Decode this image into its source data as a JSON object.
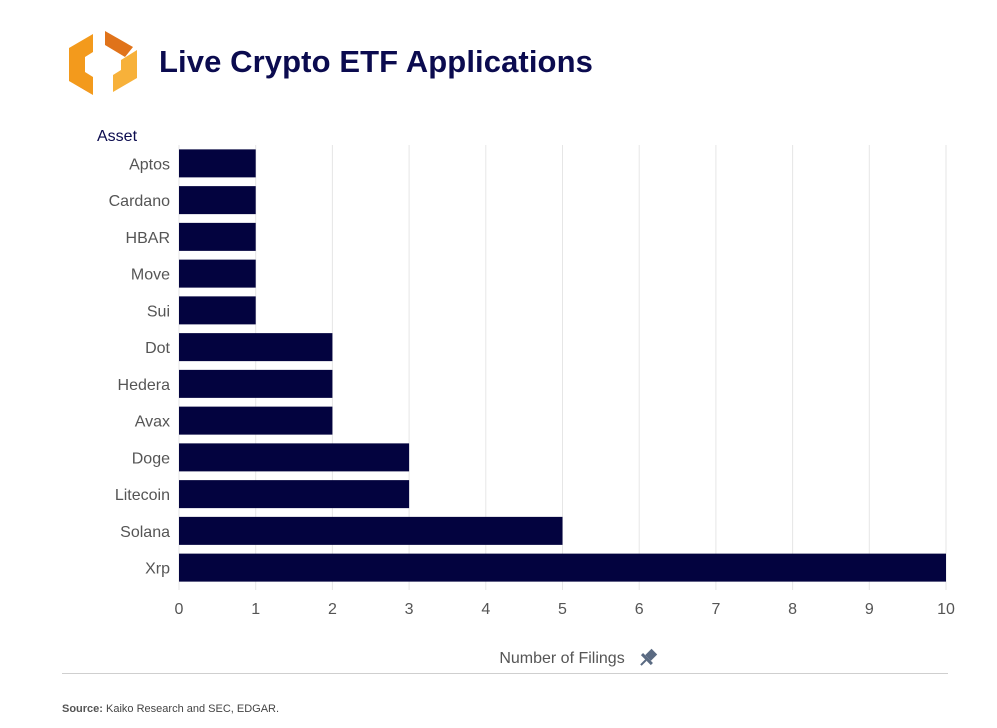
{
  "header": {
    "title": "Live Crypto ETF Applications"
  },
  "footer": {
    "source_label": "Source:",
    "source_text": "Kaiko Research and SEC, EDGAR."
  },
  "colors": {
    "bar": "#03033f",
    "title": "#0b0b4f",
    "grid": "#e6e6e6",
    "logo_orange": "#f39a1c",
    "logo_dark_orange": "#e0731a"
  },
  "chart_data": {
    "type": "bar",
    "orientation": "horizontal",
    "title": "Live Crypto ETF Applications",
    "ylabel": "Asset",
    "xlabel": "Number of Filings",
    "xlim": [
      0,
      10
    ],
    "xticks": [
      0,
      1,
      2,
      3,
      4,
      5,
      6,
      7,
      8,
      9,
      10
    ],
    "grid": true,
    "categories": [
      "Aptos",
      "Cardano",
      "HBAR",
      "Move",
      "Sui",
      "Dot",
      "Hedera",
      "Avax",
      "Doge",
      "Litecoin",
      "Solana",
      "Xrp"
    ],
    "values": [
      1,
      1,
      1,
      1,
      1,
      2,
      2,
      2,
      3,
      3,
      5,
      10
    ]
  }
}
